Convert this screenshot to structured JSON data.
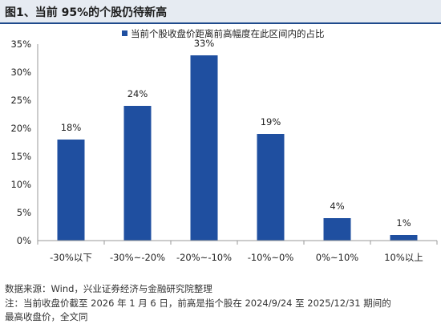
{
  "title": "图1、当前 95%的个股仍待新高",
  "chart_data": {
    "type": "bar",
    "legend": {
      "label": "当前个股收盘价距离前高幅度在此区间内的占比",
      "position": "top"
    },
    "categories": [
      "-30%以下",
      "-30%~-20%",
      "-20%~-10%",
      "-10%~0%",
      "0%~10%",
      "10%以上"
    ],
    "values": [
      18,
      24,
      33,
      19,
      4,
      1
    ],
    "data_labels": [
      "18%",
      "24%",
      "33%",
      "19%",
      "4%",
      "1%"
    ],
    "ylim": [
      0,
      35
    ],
    "yticks": [
      "0%",
      "5%",
      "10%",
      "15%",
      "20%",
      "25%",
      "30%",
      "35%"
    ],
    "grid": false,
    "bar_color": "#1f4fa0"
  },
  "notes": {
    "source": "数据来源：Wind，兴业证券经济与金融研究院整理",
    "note_line1": "注：当前收盘价截至 2026 年 1 月 6 日，前高是指个股在 2024/9/24 至 2025/12/31 期间的",
    "note_line2": "最高收盘价，全文同"
  }
}
